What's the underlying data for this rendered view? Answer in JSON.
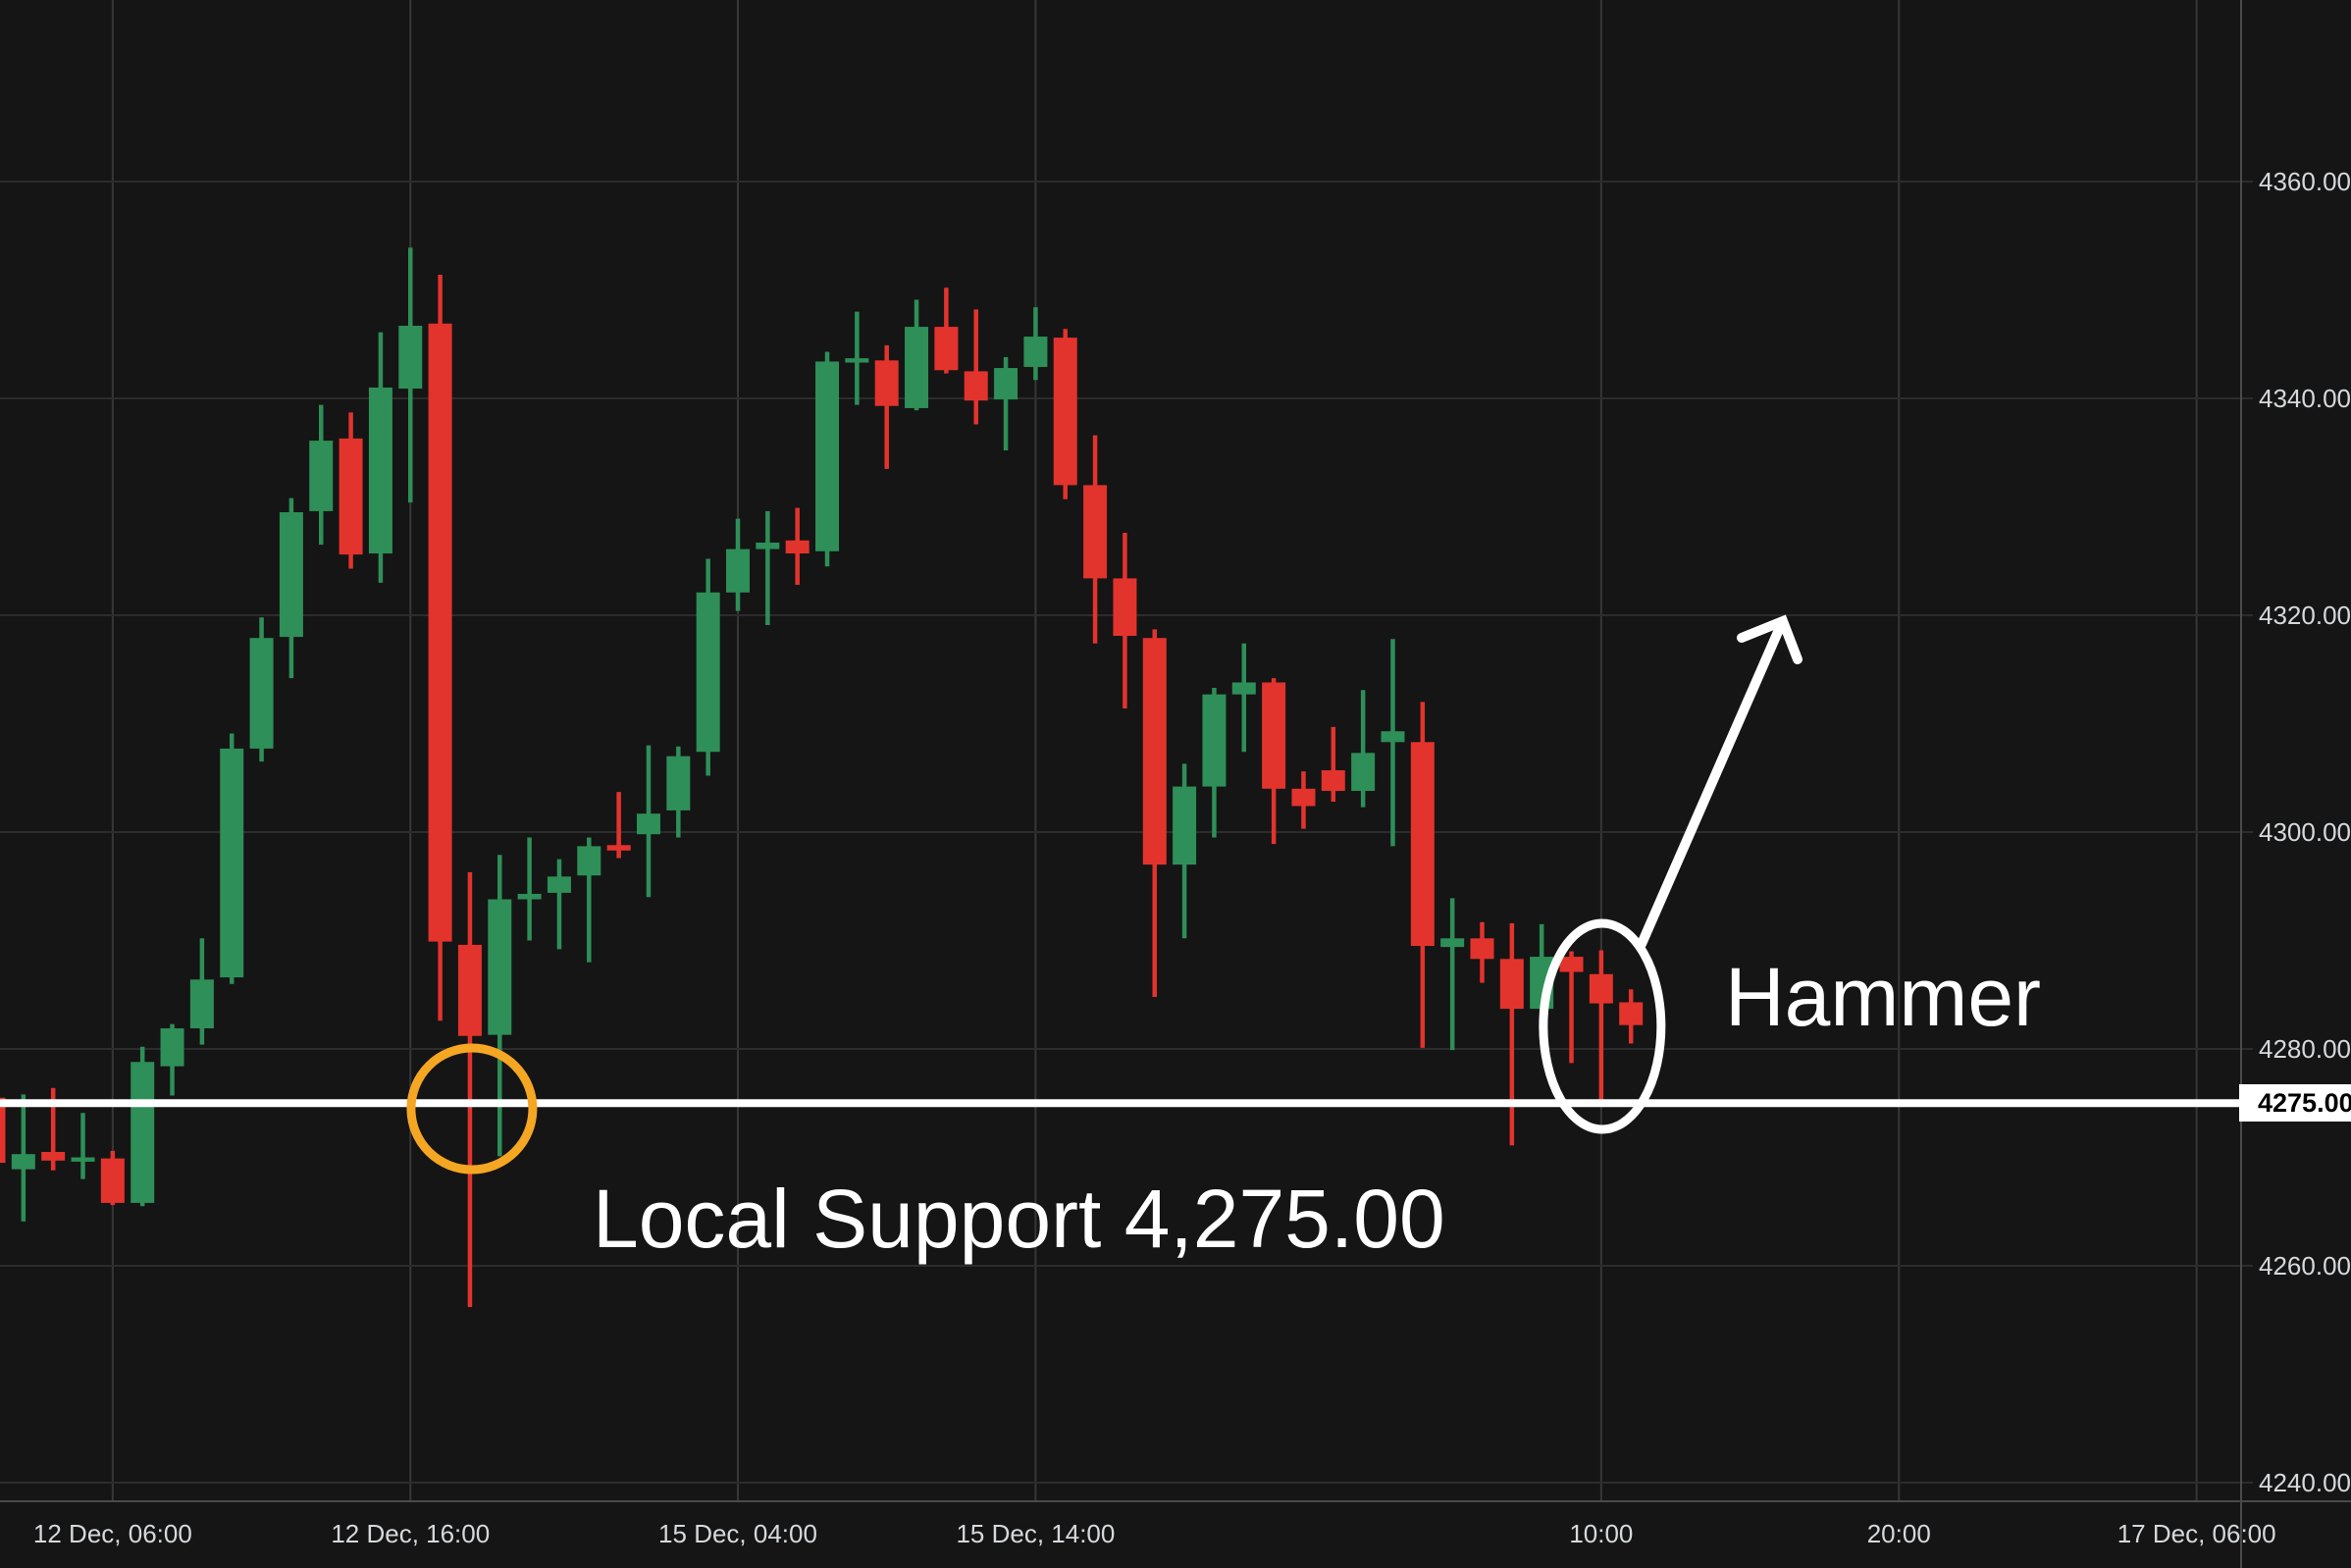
{
  "colors": {
    "background": "#151515",
    "grid_horizontal": "#2c2c2c",
    "grid_vertical": "#373737",
    "axis_separator": "#4a4a4a",
    "axis_text": "#d6d9dc",
    "up_candle": "#2e8f58",
    "down_candle": "#e3332d",
    "support_line": "#ffffff",
    "highlight_circle": "#f5a623",
    "annotation_white": "#ffffff",
    "price_tag_bg": "#ffffff",
    "price_tag_text": "#000000"
  },
  "price_scale": {
    "labels": [
      {
        "text": "4360.00",
        "value": 4360
      },
      {
        "text": "4340.00",
        "value": 4340
      },
      {
        "text": "4320.00",
        "value": 4320
      },
      {
        "text": "4300.00",
        "value": 4300
      },
      {
        "text": "4280.00",
        "value": 4280
      },
      {
        "text": "4260.00",
        "value": 4260
      },
      {
        "text": "4240.00",
        "value": 4240
      }
    ],
    "tag_text": "4275.00",
    "tag_value": 4275
  },
  "time_scale": {
    "labels": [
      {
        "text": "12 Dec, 06:00",
        "candle_index": 4
      },
      {
        "text": "12 Dec, 16:00",
        "candle_index": 14
      },
      {
        "text": "15 Dec, 04:00",
        "candle_index": 25
      },
      {
        "text": "15 Dec, 14:00",
        "candle_index": 35
      },
      {
        "text": "10:00",
        "candle_index": 54
      },
      {
        "text": "20:00",
        "candle_index": 64
      },
      {
        "text": "17 Dec, 06:00",
        "candle_index": 74
      }
    ]
  },
  "annotations": {
    "support_label": "Local Support 4,275.00",
    "hammer_label": "Hammer",
    "support_level": 4275,
    "circled_candle_index": 16,
    "hammer_candle_index": 54
  },
  "chart_data": {
    "type": "candlestick",
    "title": "",
    "xlabel": "",
    "ylabel": "",
    "ylim": [
      4238,
      4377
    ],
    "grid": true,
    "price_gridlines": [
      4360,
      4340,
      4320,
      4300,
      4280,
      4260,
      4240
    ],
    "support_level": 4275,
    "time_tick_labels": [
      "12 Dec, 06:00",
      "12 Dec, 16:00",
      "15 Dec, 04:00",
      "15 Dec, 14:00",
      "10:00",
      "20:00",
      "17 Dec, 06:00"
    ],
    "candles_ohlc_note": "each candle = [open, high, low, close]; close<open renders red, else green",
    "candles": [
      [
        4275.5,
        4275.8,
        4269.0,
        4269.5
      ],
      [
        4268.9,
        4275.8,
        4264.1,
        4270.3
      ],
      [
        4270.5,
        4276.4,
        4268.8,
        4269.7
      ],
      [
        4269.6,
        4274.1,
        4268.0,
        4270.0
      ],
      [
        4269.9,
        4270.6,
        4265.6,
        4265.8
      ],
      [
        4265.8,
        4280.2,
        4265.5,
        4278.8
      ],
      [
        4278.4,
        4282.3,
        4275.7,
        4281.9
      ],
      [
        4281.9,
        4290.2,
        4280.4,
        4286.4
      ],
      [
        4286.6,
        4309.1,
        4286.0,
        4307.7
      ],
      [
        4307.7,
        4319.8,
        4306.5,
        4317.9
      ],
      [
        4318.0,
        4330.8,
        4314.2,
        4329.5
      ],
      [
        4329.6,
        4339.4,
        4326.5,
        4336.1
      ],
      [
        4336.3,
        4338.7,
        4324.3,
        4325.6
      ],
      [
        4325.7,
        4346.1,
        4323.0,
        4341.0
      ],
      [
        4340.9,
        4353.9,
        4330.4,
        4346.7
      ],
      [
        4346.9,
        4351.4,
        4282.6,
        4289.9
      ],
      [
        4289.6,
        4296.3,
        4256.2,
        4281.2
      ],
      [
        4281.3,
        4297.9,
        4270.1,
        4293.8
      ],
      [
        4293.8,
        4299.5,
        4290.0,
        4294.3
      ],
      [
        4294.4,
        4297.5,
        4289.2,
        4295.9
      ],
      [
        4296.0,
        4299.5,
        4288.0,
        4298.7
      ],
      [
        4298.8,
        4303.7,
        4297.6,
        4298.3
      ],
      [
        4299.8,
        4308.0,
        4294.0,
        4301.7
      ],
      [
        4302.0,
        4307.9,
        4299.5,
        4307.0
      ],
      [
        4307.4,
        4325.2,
        4305.2,
        4322.1
      ],
      [
        4322.1,
        4328.9,
        4320.4,
        4326.1
      ],
      [
        4326.1,
        4329.6,
        4319.1,
        4326.7
      ],
      [
        4326.9,
        4329.9,
        4322.8,
        4325.7
      ],
      [
        4325.9,
        4344.3,
        4324.5,
        4343.4
      ],
      [
        4343.3,
        4348.0,
        4339.4,
        4343.7
      ],
      [
        4343.5,
        4344.9,
        4333.5,
        4339.3
      ],
      [
        4339.1,
        4349.1,
        4338.9,
        4346.6
      ],
      [
        4346.6,
        4350.2,
        4342.3,
        4342.6
      ],
      [
        4342.5,
        4348.2,
        4337.6,
        4339.8
      ],
      [
        4339.9,
        4343.8,
        4335.2,
        4342.8
      ],
      [
        4342.9,
        4348.4,
        4341.7,
        4345.7
      ],
      [
        4345.6,
        4346.4,
        4330.7,
        4332.0
      ],
      [
        4332.0,
        4336.6,
        4317.4,
        4323.4
      ],
      [
        4323.4,
        4327.6,
        4311.4,
        4318.1
      ],
      [
        4317.9,
        4318.7,
        4284.8,
        4297.0
      ],
      [
        4297.0,
        4306.3,
        4290.2,
        4304.2
      ],
      [
        4304.2,
        4313.3,
        4299.5,
        4312.7
      ],
      [
        4312.7,
        4317.4,
        4307.4,
        4313.8
      ],
      [
        4313.8,
        4314.2,
        4298.9,
        4304.0
      ],
      [
        4304.0,
        4305.6,
        4300.3,
        4302.4
      ],
      [
        4305.7,
        4309.7,
        4302.8,
        4303.8
      ],
      [
        4303.8,
        4313.1,
        4302.3,
        4307.3
      ],
      [
        4308.3,
        4317.8,
        4298.7,
        4309.3
      ],
      [
        4308.3,
        4312.0,
        4280.1,
        4289.5
      ],
      [
        4289.4,
        4293.9,
        4279.9,
        4290.2
      ],
      [
        4290.2,
        4291.7,
        4286.1,
        4288.3
      ],
      [
        4288.3,
        4291.6,
        4271.1,
        4283.7
      ],
      [
        4283.7,
        4291.5,
        4282.8,
        4288.5
      ],
      [
        4288.5,
        4289.0,
        4278.7,
        4287.1
      ],
      [
        4286.9,
        4289.1,
        4274.7,
        4284.2
      ],
      [
        4284.3,
        4285.5,
        4280.5,
        4282.2
      ]
    ]
  }
}
